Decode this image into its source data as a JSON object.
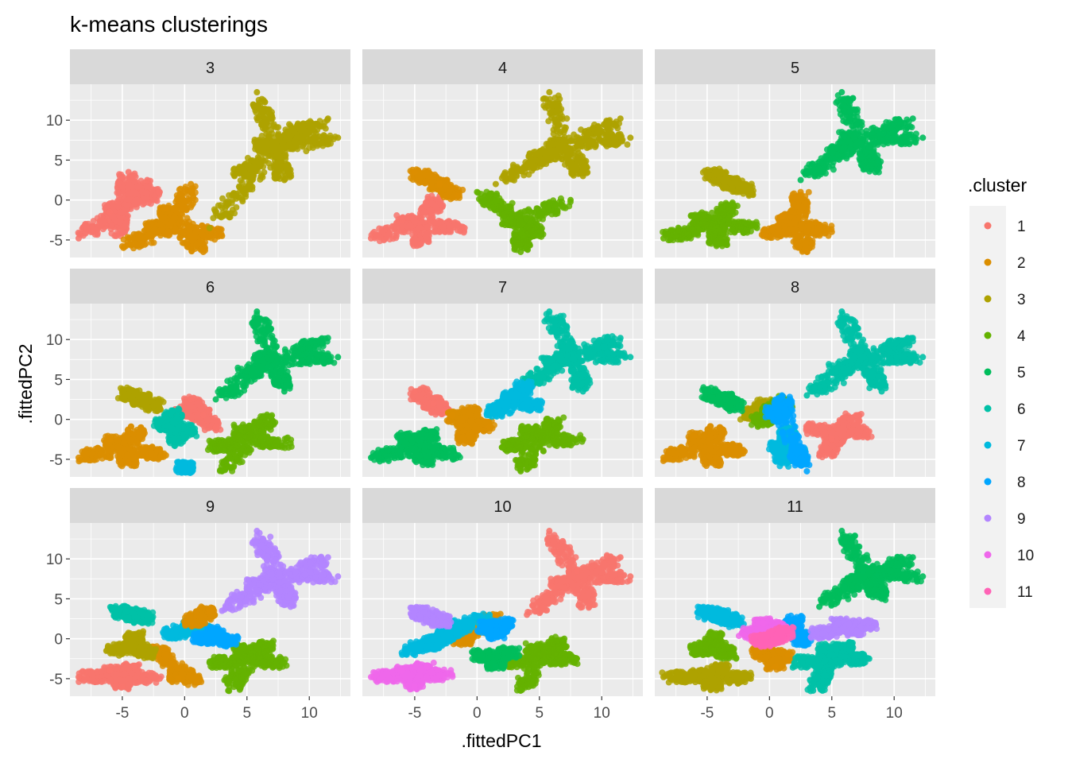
{
  "chart_data": {
    "type": "scatter",
    "title": "k-means clusterings",
    "xlabel": ".fittedPC1",
    "ylabel": ".fittedPC2",
    "legend_title": ".cluster",
    "legend_placement": "right",
    "grid": true,
    "xlim": [
      -9.2,
      13.3
    ],
    "ylim": [
      -7.2,
      14.5
    ],
    "x_ticks": [
      -5,
      0,
      5,
      10
    ],
    "y_ticks": [
      -5,
      0,
      5,
      10
    ],
    "x_tick_labels": [
      "-5",
      "0",
      "5",
      "10"
    ],
    "y_tick_labels": [
      "-5",
      "0",
      "5",
      "10"
    ],
    "cluster_labels": [
      "1",
      "2",
      "3",
      "4",
      "5",
      "6",
      "7",
      "8",
      "9",
      "10",
      "11"
    ],
    "cluster_colors": [
      "#F8766D",
      "#DB8E00",
      "#AEA200",
      "#64B200",
      "#00BD5C",
      "#00C1A7",
      "#00BADE",
      "#00A6FF",
      "#B385FF",
      "#EF67EB",
      "#FF63B6"
    ],
    "facets": [
      {
        "label": "3",
        "clusters": [
          {
            "cluster": 1,
            "x": [
              -8.5,
              -5.5,
              -4.5,
              -3.0,
              -2.0,
              -6.0
            ],
            "y": [
              -4.8,
              -4.5,
              3.5,
              2.5,
              1.0,
              -1.5
            ]
          },
          {
            "cluster": 2,
            "x": [
              -5.0,
              -1.5,
              0.5,
              3.0,
              1.5,
              -3.0
            ],
            "y": [
              -5.8,
              -1.0,
              2.0,
              -4.5,
              -6.5,
              -3.5
            ]
          },
          {
            "cluster": 3,
            "x": [
              2.0,
              4.0,
              6.0,
              8.0,
              9.5,
              12.3,
              5.8,
              11.5
            ],
            "y": [
              -3.5,
              3.0,
              7.0,
              2.5,
              9.5,
              7.8,
              13.5,
              10.2
            ]
          }
        ]
      },
      {
        "label": "4",
        "clusters": [
          {
            "cluster": 1,
            "x": [
              -8.5,
              -6.0,
              -3.0,
              -1.0,
              -4.5
            ],
            "y": [
              -4.8,
              -2.5,
              0.5,
              -3.5,
              -5.5
            ]
          },
          {
            "cluster": 2,
            "x": [
              -5.0,
              -3.0,
              -1.5
            ],
            "y": [
              3.5,
              2.0,
              0.5
            ]
          },
          {
            "cluster": 3,
            "x": [
              1.5,
              4.0,
              6.0,
              8.5,
              12.3,
              5.8,
              11.5
            ],
            "y": [
              2.0,
              4.5,
              7.0,
              3.0,
              7.8,
              13.5,
              10.2
            ]
          },
          {
            "cluster": 4,
            "x": [
              0.0,
              2.5,
              5.0,
              7.5,
              3.5
            ],
            "y": [
              1.0,
              -2.5,
              -4.5,
              0.0,
              -6.5
            ]
          }
        ]
      },
      {
        "label": "5",
        "clusters": [
          {
            "cluster": 2,
            "x": [
              -0.5,
              1.0,
              2.5,
              5.0,
              3.0
            ],
            "y": [
              -4.5,
              -2.0,
              1.0,
              -4.0,
              -6.5
            ]
          },
          {
            "cluster": 3,
            "x": [
              -5.0,
              -3.0,
              -1.5
            ],
            "y": [
              3.5,
              2.0,
              1.0
            ]
          },
          {
            "cluster": 4,
            "x": [
              -8.5,
              -6.0,
              -3.0,
              -1.0,
              -4.0
            ],
            "y": [
              -4.8,
              -2.0,
              -0.5,
              -3.5,
              -5.5
            ]
          },
          {
            "cluster": 5,
            "x": [
              2.5,
              4.5,
              6.0,
              8.5,
              12.3,
              5.8,
              11.5
            ],
            "y": [
              2.5,
              5.5,
              8.0,
              3.5,
              7.8,
              13.5,
              10.2
            ]
          }
        ]
      },
      {
        "label": "6",
        "clusters": [
          {
            "cluster": 1,
            "x": [
              0.5,
              1.5,
              2.5,
              -0.5
            ],
            "y": [
              2.5,
              0.5,
              -1.0,
              1.0
            ]
          },
          {
            "cluster": 2,
            "x": [
              -8.5,
              -6.0,
              -3.5,
              -1.5,
              -4.5
            ],
            "y": [
              -4.8,
              -2.5,
              -1.0,
              -4.5,
              -5.5
            ]
          },
          {
            "cluster": 3,
            "x": [
              -5.0,
              -3.5,
              -2.0
            ],
            "y": [
              3.5,
              2.5,
              1.5
            ]
          },
          {
            "cluster": 4,
            "x": [
              2.0,
              4.5,
              7.0,
              8.5,
              3.0
            ],
            "y": [
              -3.5,
              -1.0,
              0.5,
              -3.0,
              -6.5
            ]
          },
          {
            "cluster": 5,
            "x": [
              2.5,
              4.5,
              6.0,
              8.0,
              12.3,
              5.8,
              11.5
            ],
            "y": [
              2.5,
              5.5,
              8.0,
              3.5,
              7.8,
              13.5,
              10.2
            ]
          },
          {
            "cluster": 6,
            "x": [
              -2.0,
              -1.0,
              0.5,
              -0.5
            ],
            "y": [
              -0.5,
              1.0,
              -1.5,
              -3.0
            ]
          },
          {
            "cluster": 7,
            "x": [
              0.0
            ],
            "y": [
              -6.0
            ]
          }
        ]
      },
      {
        "label": "7",
        "clusters": [
          {
            "cluster": 1,
            "x": [
              -5.0,
              -3.5,
              -2.5
            ],
            "y": [
              3.5,
              2.0,
              1.0
            ]
          },
          {
            "cluster": 2,
            "x": [
              -2.0,
              -0.5,
              1.0,
              -1.0
            ],
            "y": [
              0.5,
              1.5,
              -1.0,
              -3.0
            ]
          },
          {
            "cluster": 4,
            "x": [
              2.0,
              4.0,
              6.5,
              8.5,
              3.5
            ],
            "y": [
              -3.5,
              -1.0,
              0.0,
              -2.5,
              -6.5
            ]
          },
          {
            "cluster": 5,
            "x": [
              -8.5,
              -6.0,
              -3.5,
              -1.5,
              -4.0
            ],
            "y": [
              -4.8,
              -2.0,
              -1.5,
              -4.5,
              -5.5
            ]
          },
          {
            "cluster": 6,
            "x": [
              3.5,
              5.5,
              7.0,
              8.5,
              12.3,
              5.8,
              11.5
            ],
            "y": [
              4.0,
              7.0,
              9.0,
              3.5,
              7.8,
              13.5,
              10.2
            ]
          },
          {
            "cluster": 7,
            "x": [
              1.0,
              2.5,
              4.0,
              5.0
            ],
            "y": [
              0.5,
              3.0,
              4.5,
              1.5
            ]
          }
        ]
      },
      {
        "label": "8",
        "clusters": [
          {
            "cluster": 1,
            "x": [
              3.0,
              5.0,
              7.0,
              8.0,
              4.5
            ],
            "y": [
              -1.0,
              -2.5,
              0.5,
              -1.5,
              -4.5
            ]
          },
          {
            "cluster": 2,
            "x": [
              -8.5,
              -6.0,
              -4.0,
              -2.0,
              -4.5
            ],
            "y": [
              -4.8,
              -2.0,
              -1.0,
              -4.0,
              -5.5
            ]
          },
          {
            "cluster": 3,
            "x": [
              -2.0,
              -0.5,
              1.0
            ],
            "y": [
              0.5,
              2.0,
              1.0
            ]
          },
          {
            "cluster": 4,
            "x": [
              -1.0,
              0.0,
              1.5
            ],
            "y": [
              -0.5,
              1.0,
              2.5
            ]
          },
          {
            "cluster": 5,
            "x": [
              -5.0,
              -3.5,
              -2.5
            ],
            "y": [
              3.5,
              2.5,
              1.5
            ]
          },
          {
            "cluster": 6,
            "x": [
              3.0,
              5.0,
              7.0,
              9.0,
              12.3,
              5.8,
              11.5
            ],
            "y": [
              3.0,
              6.0,
              8.5,
              3.5,
              7.8,
              13.5,
              10.2
            ]
          },
          {
            "cluster": 7,
            "x": [
              0.5,
              1.5,
              2.5,
              1.0
            ],
            "y": [
              -3.5,
              -1.0,
              -4.5,
              -5.5
            ]
          },
          {
            "cluster": 8,
            "x": [
              0.0,
              1.0,
              3.0
            ],
            "y": [
              1.5,
              3.0,
              -6.5
            ]
          }
        ]
      },
      {
        "label": "9",
        "clusters": [
          {
            "cluster": 1,
            "x": [
              -8.5,
              -6.0,
              -4.0,
              -2.0,
              -5.0
            ],
            "y": [
              -4.8,
              -4.0,
              -3.5,
              -5.0,
              -6.0
            ]
          },
          {
            "cluster": 2,
            "x": [
              -2.5,
              -0.5,
              1.0
            ],
            "y": [
              -1.0,
              -5.0,
              -5.5
            ]
          },
          {
            "cluster": 3,
            "x": [
              -6.0,
              -4.0,
              -2.5
            ],
            "y": [
              -1.5,
              0.5,
              -2.0
            ]
          },
          {
            "cluster": 4,
            "x": [
              2.0,
              4.5,
              7.0,
              8.0,
              3.5
            ],
            "y": [
              -3.0,
              -1.0,
              -0.5,
              -3.0,
              -6.5
            ]
          },
          {
            "cluster": 6,
            "x": [
              -5.5,
              -4.0,
              -3.0
            ],
            "y": [
              3.5,
              3.0,
              2.5
            ]
          },
          {
            "cluster": 7,
            "x": [
              -1.5,
              0.5,
              2.0
            ],
            "y": [
              0.5,
              2.0,
              1.0
            ]
          },
          {
            "cluster": 8,
            "x": [
              1.0,
              2.5,
              4.0
            ],
            "y": [
              0.0,
              1.0,
              -0.5
            ]
          },
          {
            "cluster": 9,
            "x": [
              3.0,
              5.0,
              7.0,
              8.5,
              12.3,
              5.8,
              11.5
            ],
            "y": [
              3.5,
              6.5,
              8.0,
              4.0,
              7.8,
              13.5,
              10.2
            ]
          },
          {
            "cluster": 2,
            "x": [
              0.5,
              2.0
            ],
            "y": [
              2.0,
              3.5
            ]
          }
        ]
      },
      {
        "label": "10",
        "clusters": [
          {
            "cluster": 1,
            "x": [
              4.0,
              6.0,
              8.0,
              9.0,
              12.3,
              5.8,
              11.5
            ],
            "y": [
              3.0,
              6.5,
              8.5,
              4.0,
              7.8,
              13.5,
              10.2
            ]
          },
          {
            "cluster": 2,
            "x": [
              -1.5,
              0.0,
              1.5
            ],
            "y": [
              -0.5,
              1.5,
              3.0
            ]
          },
          {
            "cluster": 4,
            "x": [
              2.0,
              4.5,
              7.0,
              8.0,
              3.5
            ],
            "y": [
              -3.0,
              -1.0,
              0.0,
              -2.5,
              -6.5
            ]
          },
          {
            "cluster": 5,
            "x": [
              0.0,
              1.5,
              3.0
            ],
            "y": [
              -2.0,
              -3.5,
              -1.5
            ]
          },
          {
            "cluster": 7,
            "x": [
              -6.0,
              -4.0,
              -2.5,
              -1.0,
              1.0
            ],
            "y": [
              -2.0,
              -1.0,
              0.5,
              2.0,
              3.0
            ]
          },
          {
            "cluster": 8,
            "x": [
              0.5,
              1.5,
              2.5
            ],
            "y": [
              1.5,
              0.5,
              2.0
            ]
          },
          {
            "cluster": 9,
            "x": [
              -5.0,
              -3.5,
              -2.5
            ],
            "y": [
              3.5,
              2.5,
              2.0
            ]
          },
          {
            "cluster": 10,
            "x": [
              -8.5,
              -6.0,
              -4.0,
              -2.0,
              -5.0
            ],
            "y": [
              -4.8,
              -4.0,
              -3.5,
              -4.5,
              -6.0
            ]
          }
        ]
      },
      {
        "label": "11",
        "clusters": [
          {
            "cluster": 2,
            "x": [
              -1.0,
              0.5,
              1.5
            ],
            "y": [
              -1.5,
              -3.5,
              -2.0
            ]
          },
          {
            "cluster": 3,
            "x": [
              -8.5,
              -6.0,
              -3.5,
              -1.5,
              -4.5
            ],
            "y": [
              -4.8,
              -4.5,
              -3.5,
              -5.0,
              -6.0
            ]
          },
          {
            "cluster": 4,
            "x": [
              -6.0,
              -4.5,
              -3.0
            ],
            "y": [
              -1.5,
              0.5,
              -2.0
            ]
          },
          {
            "cluster": 5,
            "x": [
              4.0,
              6.0,
              7.5,
              9.0,
              12.3,
              5.8,
              11.5
            ],
            "y": [
              4.0,
              6.5,
              8.5,
              5.0,
              7.8,
              13.5,
              10.2
            ]
          },
          {
            "cluster": 6,
            "x": [
              2.0,
              4.5,
              6.5,
              8.0,
              3.5
            ],
            "y": [
              -3.0,
              -1.0,
              -0.5,
              -2.5,
              -6.5
            ]
          },
          {
            "cluster": 7,
            "x": [
              -5.5,
              -4.0,
              -2.5
            ],
            "y": [
              3.5,
              3.0,
              2.0
            ]
          },
          {
            "cluster": 8,
            "x": [
              0.5,
              2.0,
              3.0
            ],
            "y": [
              1.0,
              2.5,
              -0.5
            ]
          },
          {
            "cluster": 9,
            "x": [
              3.5,
              5.5,
              7.0,
              8.5
            ],
            "y": [
              0.5,
              2.0,
              1.0,
              2.0
            ]
          },
          {
            "cluster": 10,
            "x": [
              -2.0,
              -0.5,
              1.0
            ],
            "y": [
              0.5,
              2.0,
              1.5
            ]
          },
          {
            "cluster": 11,
            "x": [
              -1.0,
              0.5,
              1.5
            ],
            "y": [
              -0.5,
              0.0,
              1.0
            ]
          }
        ]
      }
    ]
  }
}
